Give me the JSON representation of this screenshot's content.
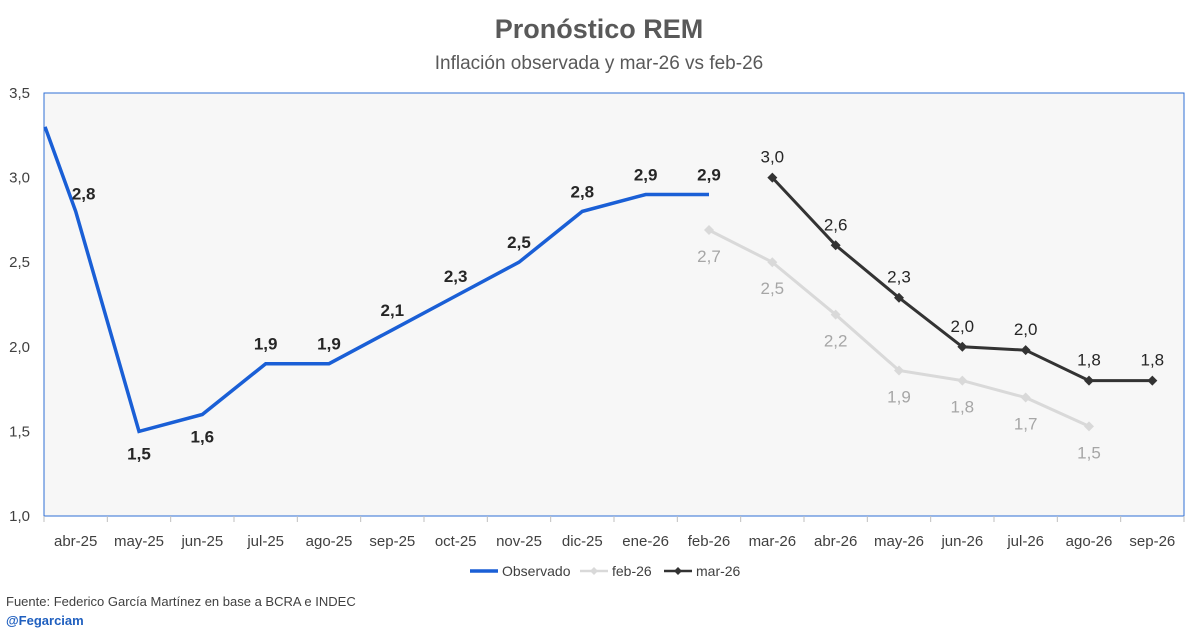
{
  "chart_data": {
    "type": "line",
    "title": "Pronóstico REM",
    "subtitle": "Inflación observada y mar-26 vs feb-26",
    "categories": [
      "abr-25",
      "may-25",
      "jun-25",
      "jul-25",
      "ago-25",
      "sep-25",
      "oct-25",
      "nov-25",
      "dic-25",
      "ene-26",
      "feb-26",
      "mar-26",
      "abr-26",
      "may-26",
      "jun-26",
      "jul-26",
      "ago-26",
      "sep-26"
    ],
    "ylim": [
      1.0,
      3.5
    ],
    "yticks": [
      1.0,
      1.5,
      2.0,
      2.5,
      3.0,
      3.5
    ],
    "ytick_labels": [
      "1,0",
      "1,5",
      "2,0",
      "2,5",
      "3,0",
      "3,5"
    ],
    "legend_position": "bottom",
    "series": [
      {
        "name": "Observado",
        "color": "#1a5fd6",
        "start_value": 3.3,
        "values": [
          2.8,
          1.5,
          1.6,
          1.9,
          1.9,
          2.1,
          2.3,
          2.5,
          2.8,
          2.9,
          2.9,
          null,
          null,
          null,
          null,
          null,
          null,
          null
        ],
        "labels": [
          "2,8",
          "1,5",
          "1,6",
          "1,9",
          "1,9",
          "2,1",
          "2,3",
          "2,5",
          "2,8",
          "2,9",
          "2,9",
          null,
          null,
          null,
          null,
          null,
          null,
          null
        ]
      },
      {
        "name": "feb-26",
        "color": "#d9d9d9",
        "values": [
          null,
          null,
          null,
          null,
          null,
          null,
          null,
          null,
          null,
          null,
          2.69,
          2.5,
          2.19,
          1.86,
          1.8,
          1.7,
          1.53,
          null
        ],
        "labels": [
          null,
          null,
          null,
          null,
          null,
          null,
          null,
          null,
          null,
          null,
          "2,7",
          "2,5",
          "2,2",
          "1,9",
          "1,8",
          "1,7",
          "1,5",
          null
        ]
      },
      {
        "name": "mar-26",
        "color": "#333333",
        "values": [
          null,
          null,
          null,
          null,
          null,
          null,
          null,
          null,
          null,
          null,
          null,
          3.0,
          2.6,
          2.29,
          2.0,
          1.98,
          1.8,
          1.8
        ],
        "labels": [
          null,
          null,
          null,
          null,
          null,
          null,
          null,
          null,
          null,
          null,
          null,
          "3,0",
          "2,6",
          "2,3",
          "2,0",
          "2,0",
          "1,8",
          "1,8"
        ]
      }
    ]
  },
  "footer": {
    "source": "Fuente: Federico García Martínez en base a BCRA e INDEC",
    "handle": "@Fegarciam"
  }
}
